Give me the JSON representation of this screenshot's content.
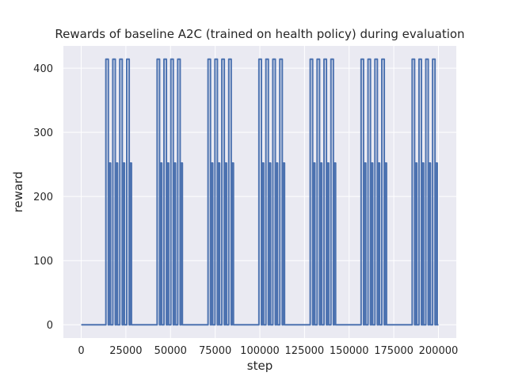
{
  "chart_data": {
    "type": "line",
    "title": "Rewards of baseline A2C (trained on health policy) during evaluation",
    "xlabel": "step",
    "ylabel": "reward",
    "xlim": [
      -10000,
      210000
    ],
    "ylim": [
      -20.7,
      434.7
    ],
    "xticks": [
      0,
      25000,
      50000,
      75000,
      100000,
      125000,
      150000,
      175000,
      200000
    ],
    "xtick_labels": [
      "0",
      "25000",
      "50000",
      "75000",
      "100000",
      "125000",
      "150000",
      "175000",
      "200000"
    ],
    "yticks": [
      0,
      100,
      200,
      300,
      400
    ],
    "ytick_labels": [
      "0",
      "100",
      "200",
      "300",
      "400"
    ],
    "grid": true,
    "background": "#eaeaf2",
    "grid_color": "#ffffff",
    "series": [
      {
        "color": "#4c72b0",
        "baseline": 0,
        "bursts": [
          {
            "start": 13800,
            "end": 28800,
            "spike_pairs": [
              {
                "high": 414,
                "low": 252
              },
              {
                "high": 414,
                "low": 252
              },
              {
                "high": 414,
                "low": 252
              },
              {
                "high": 414,
                "low": 252
              }
            ]
          },
          {
            "start": 42500,
            "end": 57300,
            "spike_pairs": [
              {
                "high": 414,
                "low": 252
              },
              {
                "high": 414,
                "low": 252
              },
              {
                "high": 414,
                "low": 252
              },
              {
                "high": 414,
                "low": 252
              }
            ]
          },
          {
            "start": 71000,
            "end": 85900,
            "spike_pairs": [
              {
                "high": 414,
                "low": 252
              },
              {
                "high": 414,
                "low": 252
              },
              {
                "high": 414,
                "low": 252
              },
              {
                "high": 414,
                "low": 252
              }
            ]
          },
          {
            "start": 99500,
            "end": 114500,
            "spike_pairs": [
              {
                "high": 414,
                "low": 252
              },
              {
                "high": 414,
                "low": 252
              },
              {
                "high": 414,
                "low": 252
              },
              {
                "high": 414,
                "low": 252
              }
            ]
          },
          {
            "start": 128200,
            "end": 143100,
            "spike_pairs": [
              {
                "high": 414,
                "low": 252
              },
              {
                "high": 414,
                "low": 252
              },
              {
                "high": 414,
                "low": 252
              },
              {
                "high": 414,
                "low": 252
              }
            ]
          },
          {
            "start": 156700,
            "end": 171600,
            "spike_pairs": [
              {
                "high": 414,
                "low": 252
              },
              {
                "high": 414,
                "low": 252
              },
              {
                "high": 414,
                "low": 252
              },
              {
                "high": 414,
                "low": 252
              }
            ]
          },
          {
            "start": 185300,
            "end": 200000,
            "spike_pairs": [
              {
                "high": 414,
                "low": 252
              },
              {
                "high": 414,
                "low": 252
              },
              {
                "high": 414,
                "low": 252
              },
              {
                "high": 414,
                "low": 252
              }
            ]
          }
        ]
      }
    ]
  }
}
